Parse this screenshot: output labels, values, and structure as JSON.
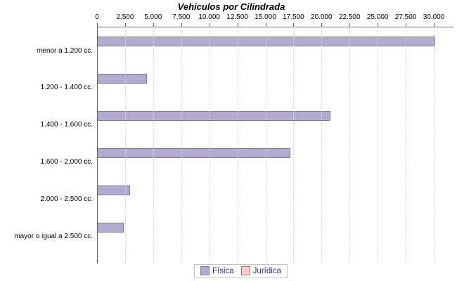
{
  "title": "Vehículos por Cilindrada",
  "chart_data": {
    "type": "bar",
    "orientation": "horizontal",
    "title": "Vehículos por Cilindrada",
    "categories": [
      "menor a 1.200 cc.",
      "1.200 - 1.400 cc.",
      "1.400 - 1.600 cc.",
      "1.600 - 2.000 cc.",
      "2.000 - 2.500 cc.",
      "mayor o igual a 2.500 cc."
    ],
    "series": [
      {
        "name": "Física",
        "color": "#b3aad1",
        "border_color": "#7f7f7f",
        "values": [
          30100,
          4450,
          20800,
          17250,
          2950,
          2400
        ]
      },
      {
        "name": "Jurídica",
        "color": "#ffcccc",
        "border_color": "#7f7f7f",
        "values": [
          0,
          0,
          0,
          0,
          0,
          0
        ]
      }
    ],
    "xlim": [
      0,
      30000
    ],
    "x_ticks": [
      0,
      2500,
      5000,
      7500,
      10000,
      12500,
      15000,
      17500,
      20000,
      22500,
      25000,
      27500,
      30000
    ],
    "x_tick_labels": [
      "0",
      "2.500",
      "5.000",
      "7.500",
      "10.000",
      "12.500",
      "15.000",
      "17.500",
      "20.000",
      "22.500",
      "25.000",
      "27.500",
      "30.000"
    ],
    "grid": "vertical-dashed",
    "legend_position": "bottom-center",
    "axis_color": "#666666",
    "gridline_color": "#d8d8d8",
    "legend_text_color": "#3a2c7e"
  }
}
